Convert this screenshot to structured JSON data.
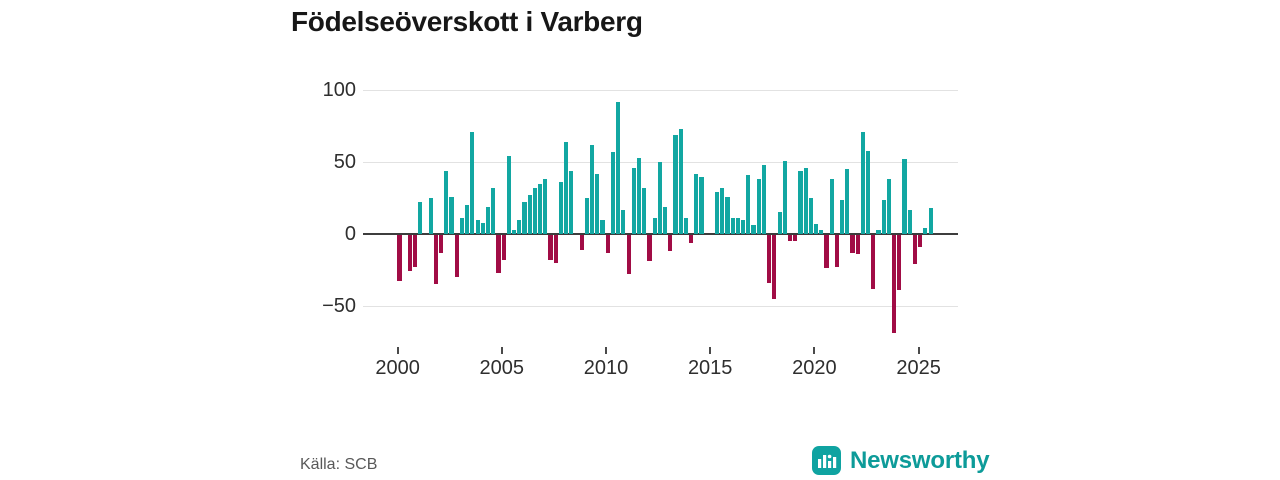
{
  "title": "Födelseöverskott i Varberg",
  "source": {
    "label": "Källa: SCB"
  },
  "brand": {
    "name": "Newsworthy",
    "color": "#0d9b99",
    "logo_bg": "#0fa3a1",
    "logo_glyph": "bar-chart"
  },
  "colors": {
    "positive": "#12a7a2",
    "negative": "#a10c45",
    "grid": "#e2e2e2",
    "zero_axis": "#3d3d3d",
    "axis_text": "#2e2e2e"
  },
  "chart_data": {
    "type": "bar",
    "title": "Födelseöverskott i Varberg",
    "frequency": "quarterly",
    "start_quarter": "2000Q1",
    "end_quarter": "2025Q3",
    "grid": true,
    "ylim": [
      -75,
      105
    ],
    "y_ticks": [
      {
        "label": "100",
        "value": 100
      },
      {
        "label": "50",
        "value": 50
      },
      {
        "label": "0",
        "value": 0
      },
      {
        "label": "−50",
        "value": -50
      }
    ],
    "x_ticks": [
      {
        "label": "2000",
        "year": 2000
      },
      {
        "label": "2005",
        "year": 2005
      },
      {
        "label": "2010",
        "year": 2010
      },
      {
        "label": "2015",
        "year": 2015
      },
      {
        "label": "2020",
        "year": 2020
      },
      {
        "label": "2025",
        "year": 2025
      }
    ],
    "values": [
      -32,
      0,
      -25,
      -22,
      22,
      0,
      25,
      -34,
      -12,
      44,
      26,
      -29,
      11,
      20,
      71,
      10,
      8,
      19,
      32,
      -26,
      -17,
      54,
      3,
      10,
      22,
      27,
      32,
      35,
      38,
      -17,
      -19,
      36,
      64,
      44,
      0,
      -10,
      25,
      62,
      42,
      10,
      -12,
      57,
      92,
      17,
      -27,
      46,
      53,
      32,
      -18,
      11,
      50,
      19,
      -11,
      69,
      73,
      11,
      -5,
      42,
      40,
      0,
      0,
      29,
      32,
      26,
      11,
      11,
      10,
      41,
      6,
      38,
      48,
      -33,
      -44,
      15,
      51,
      -4,
      -4,
      44,
      46,
      25,
      7,
      3,
      -23,
      38,
      -22,
      24,
      45,
      -12,
      -13,
      71,
      58,
      -37,
      3,
      24,
      38,
      -68,
      -38,
      52,
      17,
      -20,
      -8,
      4,
      18
    ]
  }
}
